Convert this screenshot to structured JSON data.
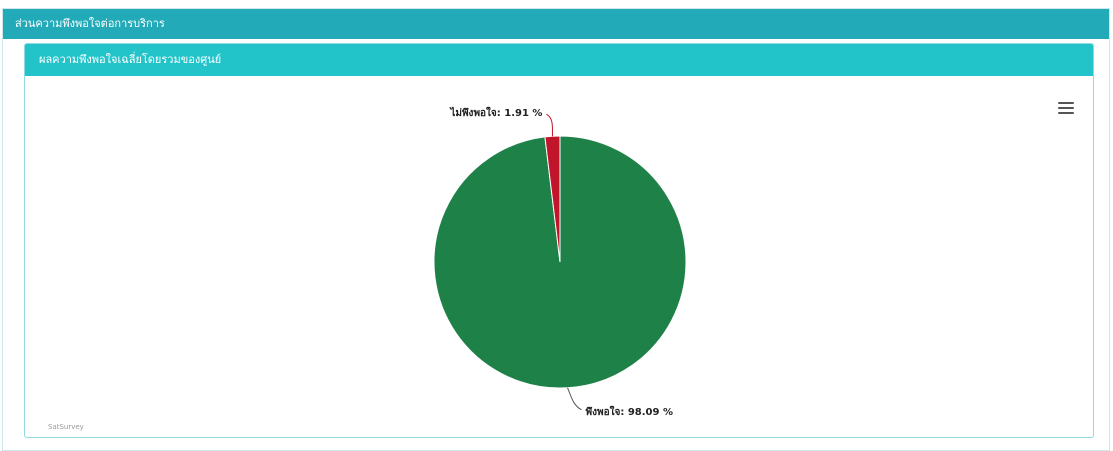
{
  "panel": {
    "title": "ส่วนความพึงพอใจต่อการบริการ"
  },
  "card": {
    "title": "ผลความพึงพอใจเฉลี่ยโดยรวมของศูนย์"
  },
  "menu": {
    "icon": "hamburger-menu-icon"
  },
  "credits": "SatSurvey",
  "chart_data": {
    "type": "pie",
    "title": "",
    "categories": [
      "พึงพอใจ",
      "ไม่พึงพอใจ"
    ],
    "values": [
      98.09,
      1.91
    ],
    "labels": [
      "พึงพอใจ: 98.09 %",
      "ไม่พึงพอใจ: 1.91 %"
    ],
    "colors": [
      "#1e8148",
      "#c0152b"
    ],
    "legend": "none"
  }
}
